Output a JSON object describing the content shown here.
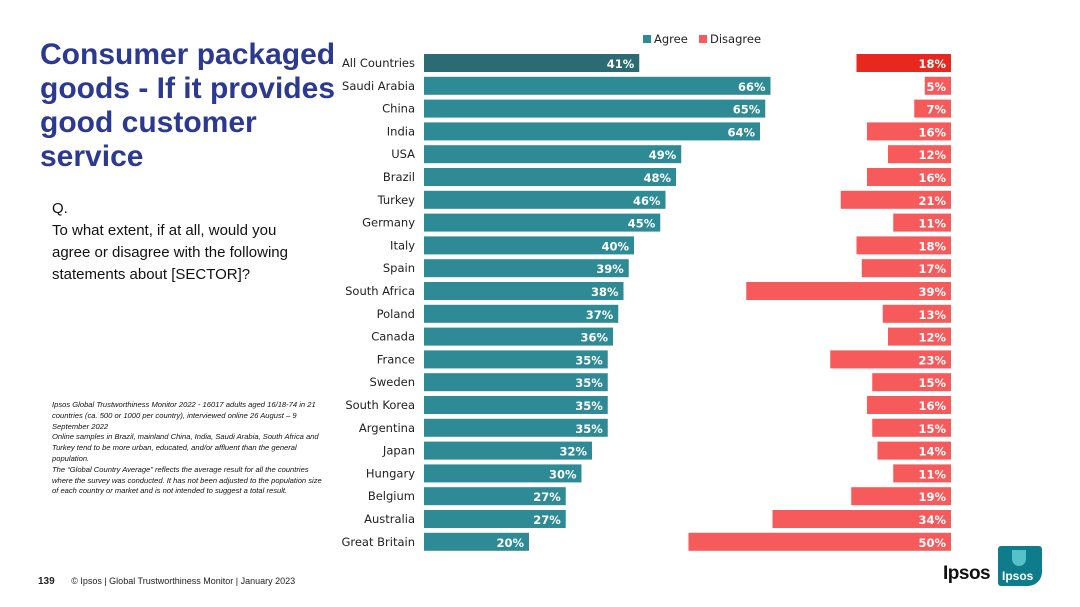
{
  "slide": {
    "title": "Consumer packaged goods - If it provides good customer service",
    "question_prefix": "Q.",
    "question": "To what extent, if at all, would you agree or disagree with the following statements about [SECTOR]?",
    "notes": [
      "Ipsos Global Trustworthiness Monitor 2022 - 16017 adults aged 16/18-74 in 21 countries (ca. 500 or 1000 per country), interviewed online 26 August – 9 September 2022",
      "Online samples in Brazil, mainland China, India, Saudi Arabia, South Africa and Turkey tend to be more urban, educated, and/or affluent than the general population.",
      "The “Global Country Average” reflects the average result for all the countries where the survey was conducted. It has not been adjusted to the population size of each country or market and is not intended to suggest a total result."
    ],
    "page_number": "139",
    "footer": "© Ipsos | Global Trustworthiness Monitor | January 2023",
    "logo_text": "Ipsos",
    "logo_box_text": "Ipsos"
  },
  "colors": {
    "title": "#2b3990",
    "agree": "#2e8b96",
    "agree_highlight": "#2a6b74",
    "disagree": "#f65a5b",
    "disagree_highlight": "#e8281e"
  },
  "chart_data": {
    "type": "bar",
    "orientation": "horizontal",
    "categories": [
      "All Countries",
      "Saudi Arabia",
      "China",
      "India",
      "USA",
      "Brazil",
      "Turkey",
      "Germany",
      "Italy",
      "Spain",
      "South Africa",
      "Poland",
      "Canada",
      "France",
      "Sweden",
      "South Korea",
      "Argentina",
      "Japan",
      "Hungary",
      "Belgium",
      "Australia",
      "Great Britain"
    ],
    "series": [
      {
        "name": "Agree",
        "values": [
          41,
          66,
          65,
          64,
          49,
          48,
          46,
          45,
          40,
          39,
          38,
          37,
          36,
          35,
          35,
          35,
          35,
          32,
          30,
          27,
          27,
          20
        ]
      },
      {
        "name": "Disagree",
        "values": [
          18,
          5,
          7,
          16,
          12,
          16,
          21,
          11,
          18,
          17,
          39,
          13,
          12,
          23,
          15,
          16,
          15,
          14,
          11,
          19,
          34,
          50
        ]
      }
    ],
    "value_suffix": "%",
    "legend": [
      "Agree",
      "Disagree"
    ],
    "legend_position": "top",
    "highlight_category": "All Countries"
  }
}
